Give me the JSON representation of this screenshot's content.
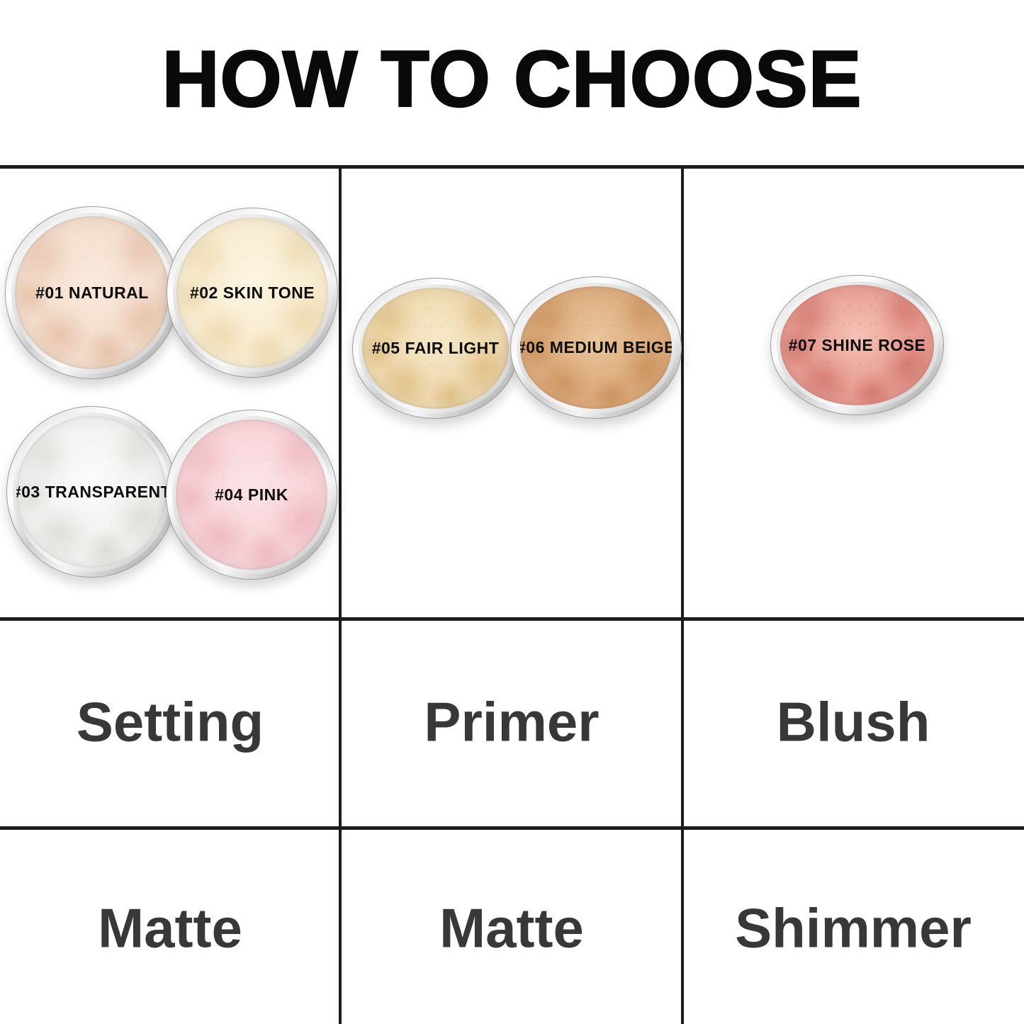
{
  "title": "HOW TO CHOOSE",
  "jars": [
    {
      "label": "#01 NATURAL",
      "shade_number": "#01",
      "shade_name": "NATURAL",
      "base": "#f3dccb",
      "light": "#f9eadd",
      "dark": "#e7c3ab"
    },
    {
      "label": "#02 SKIN TONE",
      "shade_number": "#02",
      "shade_name": "SKIN TONE",
      "base": "#f8ecd0",
      "light": "#fcf4e2",
      "dark": "#eddab0"
    },
    {
      "label": "#03 TRANSPARENT",
      "shade_number": "#03",
      "shade_name": "TRANSPARENT",
      "base": "#f2f1ef",
      "light": "#fbfbfa",
      "dark": "#dfddda"
    },
    {
      "label": "#04 PINK",
      "shade_number": "#04",
      "shade_name": "PINK",
      "base": "#f7d2d6",
      "light": "#fbe4e6",
      "dark": "#efbac2"
    },
    {
      "label": "#05 FAIR LIGHT",
      "shade_number": "#05",
      "shade_name": "FAIR LIGHT",
      "base": "#eed8ad",
      "light": "#f6e8c9",
      "dark": "#e0c188"
    },
    {
      "label": "#06 MEDIUM BEIGE",
      "shade_number": "#06",
      "shade_name": "MEDIUM BEIGE",
      "base": "#dcab7c",
      "light": "#e9c49c",
      "dark": "#cc9560"
    },
    {
      "label": "#07 SHINE ROSE",
      "shade_number": "#07",
      "shade_name": "SHINE ROSE",
      "base": "#e79a90",
      "light": "#f5c2b5",
      "dark": "#d47b72"
    }
  ],
  "grid": {
    "line_color": "#1c1c1c",
    "columns": [
      {
        "category": "Setting",
        "finish": "Matte"
      },
      {
        "category": "Primer",
        "finish": "Matte"
      },
      {
        "category": "Blush",
        "finish": "Shimmer"
      }
    ]
  },
  "text_colors": {
    "title": "#0a0a0a",
    "row_label": "#383838",
    "jar_label": "#0d0d0d"
  }
}
